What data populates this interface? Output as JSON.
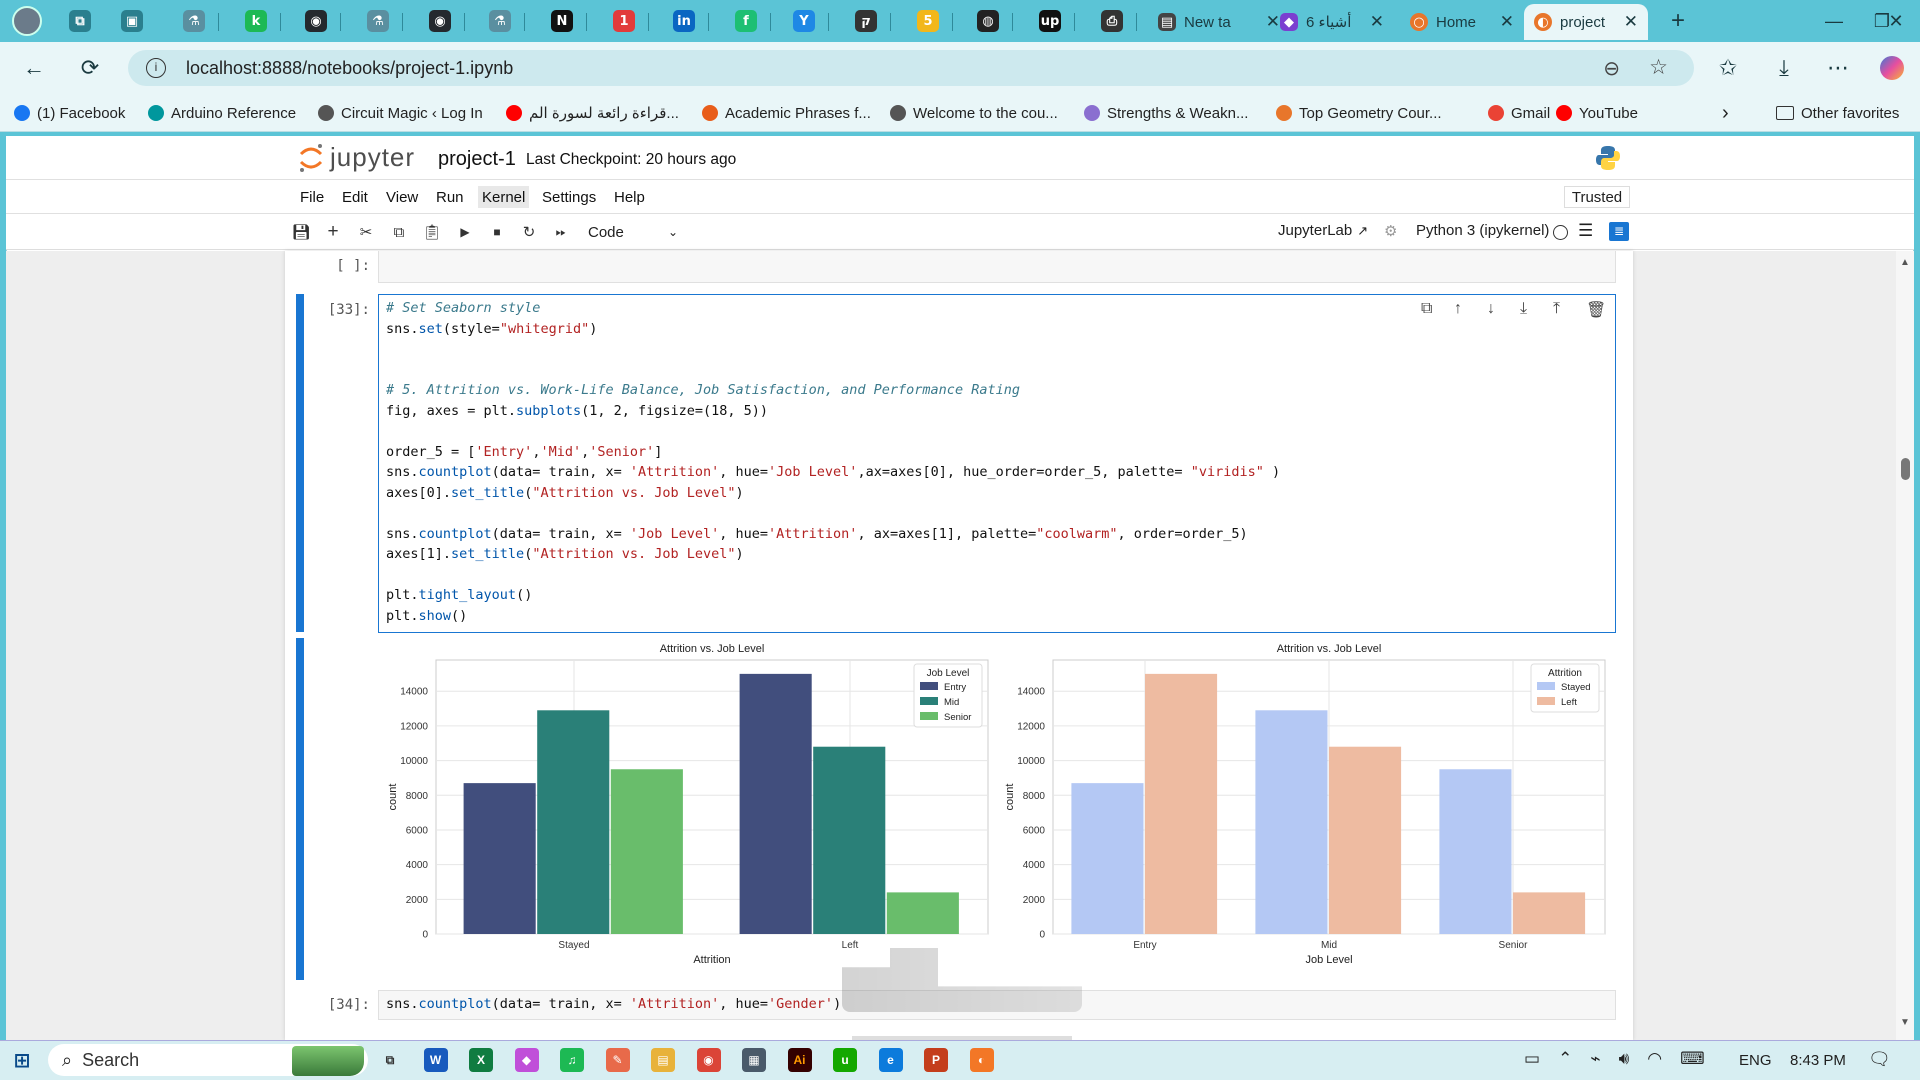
{
  "browser": {
    "tabs": [
      {
        "label": "New ta",
        "color": "#444"
      },
      {
        "label": "6 أشياء",
        "color": "#7b3fd0"
      },
      {
        "label": "Home",
        "color": "#e8762b"
      },
      {
        "label": "project",
        "color": "#e8762b"
      }
    ],
    "favicons": [
      {
        "name": "copilot",
        "glyph": "⧉",
        "color": "#2a7f8e"
      },
      {
        "name": "sidebar",
        "glyph": "▣",
        "color": "#2a7f8e"
      },
      {
        "name": "tab-a",
        "glyph": "⚗",
        "color": "#5a8fa0"
      },
      {
        "name": "tab-b",
        "glyph": "k",
        "color": "#1db954"
      },
      {
        "name": "github",
        "glyph": "◉",
        "color": "#24292e"
      },
      {
        "name": "tab-c",
        "glyph": "⚗",
        "color": "#5a8fa0"
      },
      {
        "name": "github",
        "glyph": "◉",
        "color": "#24292e"
      },
      {
        "name": "tab-d",
        "glyph": "⚗",
        "color": "#5a8fa0"
      },
      {
        "name": "notion",
        "glyph": "N",
        "color": "#111"
      },
      {
        "name": "tab-e",
        "glyph": "1",
        "color": "#e23b3b"
      },
      {
        "name": "linkedin",
        "glyph": "in",
        "color": "#0a66c2"
      },
      {
        "name": "tab-f",
        "glyph": "f",
        "color": "#1dbf73"
      },
      {
        "name": "tab-g",
        "glyph": "Y",
        "color": "#1e88e5"
      },
      {
        "name": "tab-h",
        "glyph": "ק",
        "color": "#333"
      },
      {
        "name": "tab-i",
        "glyph": "5",
        "color": "#f2b71a"
      },
      {
        "name": "tab-j",
        "glyph": "◍",
        "color": "#222"
      },
      {
        "name": "upwork",
        "glyph": "up",
        "color": "#111"
      },
      {
        "name": "tab-k",
        "glyph": "⎙",
        "color": "#333"
      }
    ],
    "url": "localhost:8888/notebooks/project-1.ipynb",
    "bookmarks": [
      {
        "label": "(1) Facebook",
        "color": "#1877f2"
      },
      {
        "label": "Arduino Reference",
        "color": "#00979d"
      },
      {
        "label": "Circuit Magic ‹ Log In",
        "color": "#555"
      },
      {
        "label": "قراءة رائعة لسورة الم...",
        "color": "#ff0000"
      },
      {
        "label": "Academic Phrases f...",
        "color": "#e85d1a"
      },
      {
        "label": "Welcome to the cou...",
        "color": "#555"
      },
      {
        "label": "Strengths & Weakn...",
        "color": "#8a6fd0"
      },
      {
        "label": "Top Geometry Cour...",
        "color": "#e8762b"
      },
      {
        "label": "Gmail",
        "color": "#ea4335"
      },
      {
        "label": "YouTube",
        "color": "#ff0000"
      }
    ],
    "other_favorites": "Other favorites"
  },
  "jupyter": {
    "logo_text": "jupyter",
    "notebook_name": "project-1",
    "checkpoint": "Last Checkpoint: 20 hours ago",
    "menu": [
      "File",
      "Edit",
      "View",
      "Run",
      "Kernel",
      "Settings",
      "Help"
    ],
    "trusted": "Trusted",
    "cell_type": "Code",
    "jupyterlab_link": "JupyterLab",
    "kernel_name": "Python 3 (ipykernel)"
  },
  "cells": {
    "empty_prompt": "[ ]:",
    "main_prompt": "[33]:",
    "main_code": [
      "# Set Seaborn style",
      "sns.set(style=\"whitegrid\")",
      "",
      "",
      "# 5. Attrition vs. Work-Life Balance, Job Satisfaction, and Performance Rating",
      "fig, axes = plt.subplots(1, 2, figsize=(18, 5))",
      "",
      "order_5 = ['Entry','Mid','Senior']",
      "sns.countplot(data= train, x= 'Attrition', hue='Job Level',ax=axes[0], hue_order=order_5, palette= \"viridis\" )",
      "axes[0].set_title(\"Attrition vs. Job Level\")",
      "",
      "sns.countplot(data= train, x= 'Job Level', hue='Attrition', ax=axes[1], palette=\"coolwarm\", order=order_5)",
      "axes[1].set_title(\"Attrition vs. Job Level\")",
      "",
      "plt.tight_layout()",
      "plt.show()"
    ],
    "next_prompt": "[34]:",
    "next_code": "sns.countplot(data= train, x= 'Attrition', hue='Gender')"
  },
  "chart_data": [
    {
      "type": "bar",
      "title": "Attrition vs. Job Level",
      "xlabel": "Attrition",
      "ylabel": "count",
      "categories": [
        "Stayed",
        "Left"
      ],
      "ylim": [
        0,
        15800
      ],
      "yticks": [
        0,
        2000,
        4000,
        6000,
        8000,
        10000,
        12000,
        14000
      ],
      "legend_title": "Job Level",
      "legend_position": "top-right",
      "series": [
        {
          "name": "Entry",
          "color": "#414e7d",
          "values": [
            8700,
            15000
          ]
        },
        {
          "name": "Mid",
          "color": "#2a8078",
          "values": [
            12900,
            10800
          ]
        },
        {
          "name": "Senior",
          "color": "#69bd6b",
          "values": [
            9500,
            2400
          ]
        }
      ]
    },
    {
      "type": "bar",
      "title": "Attrition vs. Job Level",
      "xlabel": "Job Level",
      "ylabel": "count",
      "categories": [
        "Entry",
        "Mid",
        "Senior"
      ],
      "ylim": [
        0,
        15800
      ],
      "yticks": [
        0,
        2000,
        4000,
        6000,
        8000,
        10000,
        12000,
        14000
      ],
      "legend_title": "Attrition",
      "legend_position": "top-right",
      "series": [
        {
          "name": "Stayed",
          "color": "#b4c8f4",
          "values": [
            8700,
            12900,
            9500
          ]
        },
        {
          "name": "Left",
          "color": "#eebba1",
          "values": [
            15000,
            10800,
            2400
          ]
        }
      ]
    }
  ],
  "taskbar": {
    "search_label": "Search",
    "language": "ENG",
    "time": "8:43 PM"
  }
}
